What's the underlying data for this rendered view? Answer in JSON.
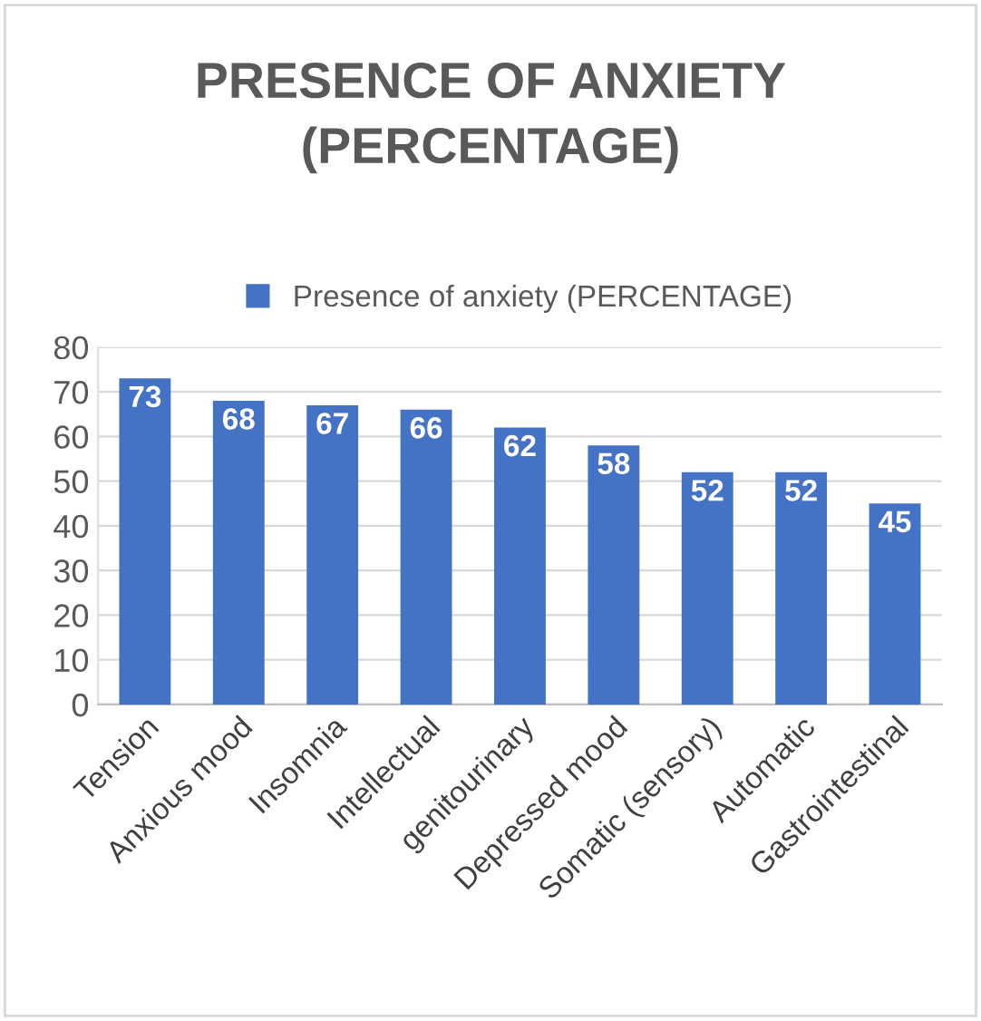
{
  "chart_data": {
    "type": "bar",
    "title": "PRESENCE OF ANXIETY\n(PERCENTAGE)",
    "categories": [
      "Tension",
      "Anxious mood",
      "Insomnia",
      "Intellectual",
      "genitourinary",
      "Depressed mood",
      "Somatic (sensory)",
      "Automatic",
      "Gastrointestinal"
    ],
    "series": [
      {
        "name": "Presence of anxiety (PERCENTAGE)",
        "color": "#4472c4",
        "values": [
          73,
          68,
          67,
          66,
          62,
          58,
          52,
          52,
          45
        ]
      }
    ],
    "ylim": [
      0,
      80
    ],
    "yticks": [
      0,
      10,
      20,
      30,
      40,
      50,
      60,
      70,
      80
    ],
    "grid": "y",
    "legend": "top",
    "data_labels": true
  }
}
